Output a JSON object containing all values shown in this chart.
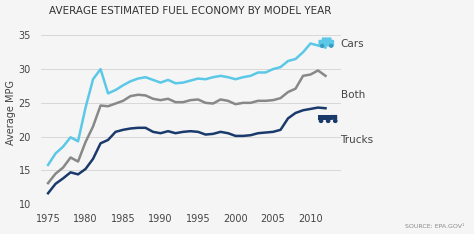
{
  "title": "AVERAGE ESTIMATED FUEL ECONOMY BY MODEL YEAR",
  "ylabel": "Average MPG",
  "source": "SOURCE: EPA.GOV¹",
  "background_color": "#f5f5f5",
  "ylim": [
    10,
    37
  ],
  "xlim": [
    1974,
    2014
  ],
  "yticks": [
    10,
    15,
    20,
    25,
    30,
    35
  ],
  "xticks": [
    1975,
    1980,
    1985,
    1990,
    1995,
    2000,
    2005,
    2010
  ],
  "cars_color": "#5bc8e8",
  "both_color": "#888888",
  "trucks_color": "#1a3a6b",
  "years": [
    1975,
    1976,
    1977,
    1978,
    1979,
    1980,
    1981,
    1982,
    1983,
    1984,
    1985,
    1986,
    1987,
    1988,
    1989,
    1990,
    1991,
    1992,
    1993,
    1994,
    1995,
    1996,
    1997,
    1998,
    1999,
    2000,
    2001,
    2002,
    2003,
    2004,
    2005,
    2006,
    2007,
    2008,
    2009,
    2010,
    2011,
    2012
  ],
  "cars": [
    15.8,
    17.5,
    18.5,
    19.9,
    19.3,
    24.3,
    28.5,
    30.0,
    26.4,
    26.9,
    27.6,
    28.2,
    28.6,
    28.8,
    28.4,
    28.0,
    28.4,
    27.9,
    28.0,
    28.3,
    28.6,
    28.5,
    28.8,
    29.0,
    28.8,
    28.5,
    28.8,
    29.0,
    29.5,
    29.5,
    30.0,
    30.3,
    31.2,
    31.5,
    32.5,
    33.8,
    33.5,
    33.2
  ],
  "both": [
    13.1,
    14.5,
    15.4,
    16.9,
    16.3,
    19.2,
    21.5,
    24.6,
    24.5,
    24.9,
    25.3,
    26.0,
    26.2,
    26.1,
    25.6,
    25.4,
    25.6,
    25.1,
    25.1,
    25.4,
    25.5,
    25.0,
    24.9,
    25.5,
    25.3,
    24.8,
    25.0,
    25.0,
    25.3,
    25.3,
    25.4,
    25.7,
    26.6,
    27.1,
    29.0,
    29.2,
    29.8,
    29.0
  ],
  "trucks": [
    11.6,
    13.0,
    13.8,
    14.7,
    14.4,
    15.2,
    16.7,
    19.0,
    19.5,
    20.7,
    21.0,
    21.2,
    21.3,
    21.3,
    20.7,
    20.5,
    20.8,
    20.5,
    20.7,
    20.8,
    20.7,
    20.3,
    20.4,
    20.7,
    20.5,
    20.1,
    20.1,
    20.2,
    20.5,
    20.6,
    20.7,
    21.0,
    22.7,
    23.5,
    23.9,
    24.1,
    24.3,
    24.2
  ]
}
